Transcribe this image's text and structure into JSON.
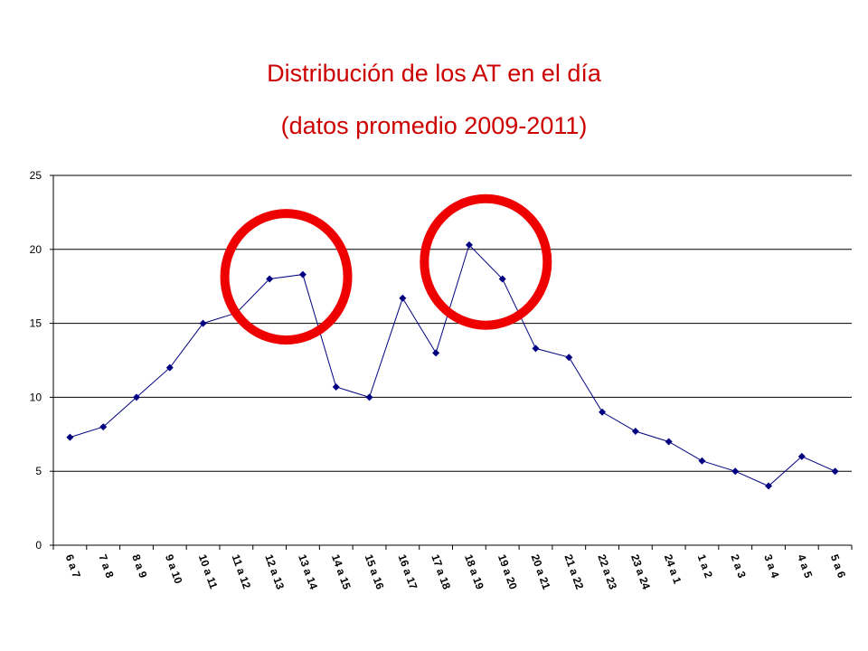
{
  "chart_data": {
    "type": "line",
    "title": "Distribución de los AT en el día",
    "subtitle": "(datos promedio 2009-2011)",
    "categories": [
      "6 a 7",
      "7 a 8",
      "8 a 9",
      "9 a 10",
      "10 a 11",
      "11 a 12",
      "12 a 13",
      "13 a 14",
      "14 a 15",
      "15 a 16",
      "16 a 17",
      "17 a 18",
      "18 a 19",
      "19 a 20",
      "20 a 21",
      "21 a 22",
      "22 a 23",
      "23 a 24",
      "24 a 1",
      "1 a 2",
      "2 a 3",
      "3 a 4",
      "4 a 5",
      "5 a 6"
    ],
    "series": [
      {
        "values": [
          7.3,
          8.0,
          10.0,
          12.0,
          15.0,
          15.7,
          18.0,
          18.3,
          10.7,
          10.0,
          16.7,
          13.0,
          20.3,
          18.0,
          13.3,
          12.7,
          9.0,
          7.7,
          7.0,
          5.7,
          5.0,
          4.0,
          6.0,
          5.0
        ]
      }
    ],
    "ylim": [
      0,
      25
    ],
    "yticks": [
      0,
      5,
      10,
      15,
      20,
      25
    ],
    "grid": true,
    "legend": "none",
    "colors": {
      "line": "#000080",
      "marker": "#000080",
      "title": "#cc0000",
      "highlight": "#ee0000",
      "grid": "#000000"
    },
    "annotations": [
      {
        "type": "highlight-circle",
        "around": [
          "12 a 13",
          "13 a 14"
        ]
      },
      {
        "type": "highlight-circle",
        "around": [
          "18 a 19",
          "19 a 20"
        ]
      }
    ]
  }
}
